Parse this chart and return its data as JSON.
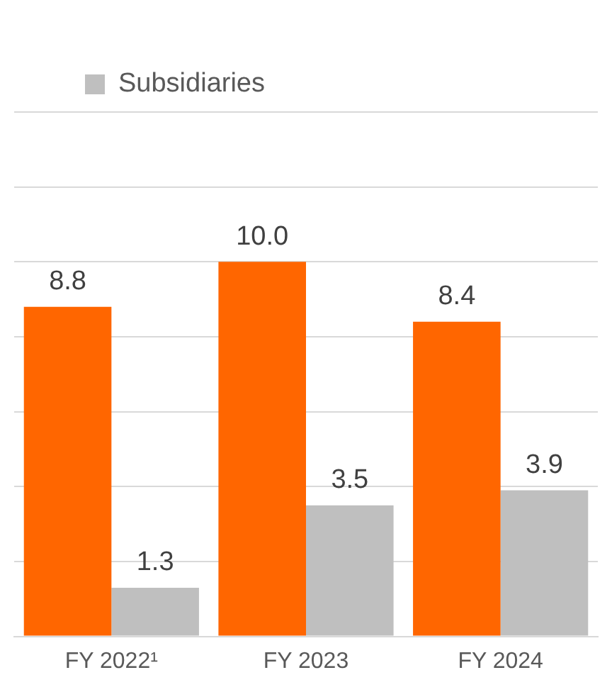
{
  "chart_data": {
    "type": "bar",
    "categories": [
      "FY 2022¹",
      "FY 2023",
      "FY 2024"
    ],
    "series": [
      {
        "color": "#ff6600",
        "values": [
          8.8,
          10.0,
          8.4
        ],
        "value_labels": [
          "8.8",
          "10.0",
          "8.4"
        ]
      },
      {
        "name": "Subsidiaries",
        "color": "#bfbfbf",
        "values": [
          1.3,
          3.5,
          3.9
        ],
        "value_labels": [
          "1.3",
          "3.5",
          "3.9"
        ]
      }
    ],
    "ylim": [
      0,
      14
    ],
    "yticks": [
      {
        "value": 0,
        "label": null
      },
      {
        "value": 2,
        "label": null
      },
      {
        "value": 4,
        "label": null
      },
      {
        "value": 6,
        "label": null
      },
      {
        "value": 8,
        "label": null
      },
      {
        "value": 10,
        "label": null
      },
      {
        "value": 12,
        "label": null
      },
      {
        "value": 14,
        "label": null
      }
    ],
    "tick_labels": "x",
    "grid": "y",
    "legend": "top left"
  }
}
